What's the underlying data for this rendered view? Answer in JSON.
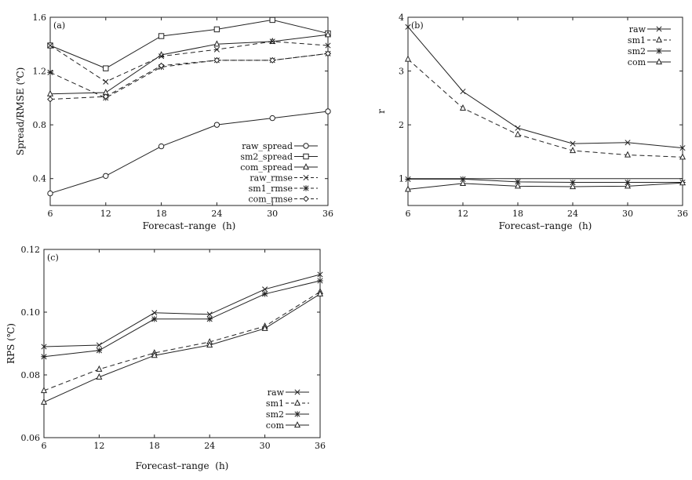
{
  "chart_data": [
    {
      "type": "line",
      "panel_label": "(a)",
      "xlabel": "Forecast–range  (h)",
      "ylabel": "Spread/RMSE (℃)",
      "x": [
        6,
        12,
        18,
        24,
        30,
        36
      ],
      "xticks": [
        "6",
        "12",
        "18",
        "24",
        "30",
        "36"
      ],
      "ylim": [
        0.2,
        1.6
      ],
      "yticks": [
        "0.4",
        "0.8",
        "1.2",
        "1.6"
      ],
      "legend_position": "bottom-right",
      "series": [
        {
          "name": "raw_spread",
          "marker": "circle",
          "dash": "solid",
          "values": [
            0.29,
            0.42,
            0.64,
            0.8,
            0.85,
            0.9
          ]
        },
        {
          "name": "sm2_spread",
          "marker": "square",
          "dash": "solid",
          "values": [
            1.39,
            1.22,
            1.46,
            1.51,
            1.58,
            1.48
          ]
        },
        {
          "name": "com_spread",
          "marker": "triangle",
          "dash": "solid",
          "values": [
            1.03,
            1.04,
            1.32,
            1.4,
            1.42,
            1.47
          ]
        },
        {
          "name": "raw_rmse",
          "marker": "x",
          "dash": "dashed",
          "values": [
            1.39,
            1.12,
            1.31,
            1.36,
            1.42,
            1.39
          ]
        },
        {
          "name": "sm1_rmse",
          "marker": "star",
          "dash": "dashed",
          "values": [
            1.19,
            1.0,
            1.23,
            1.28,
            1.28,
            1.33
          ]
        },
        {
          "name": "com_rmse",
          "marker": "diamond",
          "dash": "dashed",
          "values": [
            0.99,
            1.01,
            1.24,
            1.28,
            1.28,
            1.33
          ]
        }
      ]
    },
    {
      "type": "line",
      "panel_label": "(b)",
      "xlabel": "Forecast–range  (h)",
      "ylabel": "r",
      "x": [
        6,
        12,
        18,
        24,
        30,
        36
      ],
      "xticks": [
        "6",
        "12",
        "18",
        "24",
        "30",
        "36"
      ],
      "ylim": [
        0.5,
        4.0
      ],
      "yticks": [
        "1",
        "2",
        "3",
        "4"
      ],
      "legend_position": "top-right",
      "series": [
        {
          "name": "raw",
          "marker": "x",
          "dash": "solid",
          "values": [
            3.82,
            2.62,
            1.94,
            1.65,
            1.67,
            1.57
          ]
        },
        {
          "name": "sm1",
          "marker": "triangle",
          "dash": "dashed",
          "values": [
            3.22,
            2.31,
            1.82,
            1.52,
            1.44,
            1.4
          ]
        },
        {
          "name": "sm2",
          "marker": "star",
          "dash": "solid",
          "values": [
            0.99,
            0.99,
            0.94,
            0.93,
            0.93,
            0.93
          ]
        },
        {
          "name": "com",
          "marker": "triangle",
          "dash": "solid",
          "values": [
            0.8,
            0.91,
            0.86,
            0.85,
            0.86,
            0.92
          ]
        }
      ],
      "reference_line": 1.0
    },
    {
      "type": "line",
      "panel_label": "(c)",
      "xlabel": "Forecast–range  (h)",
      "ylabel": "RPS (℃)",
      "x": [
        6,
        12,
        18,
        24,
        30,
        36
      ],
      "xticks": [
        "6",
        "12",
        "18",
        "24",
        "30",
        "36"
      ],
      "ylim": [
        0.06,
        0.12
      ],
      "yticks": [
        "0.06",
        "0.08",
        "0.10",
        "0.12"
      ],
      "legend_position": "bottom-right",
      "series": [
        {
          "name": "raw",
          "marker": "x",
          "dash": "solid",
          "values": [
            0.089,
            0.0895,
            0.0998,
            0.0993,
            0.1073,
            0.112
          ]
        },
        {
          "name": "sm1",
          "marker": "triangle",
          "dash": "dashed",
          "values": [
            0.075,
            0.0818,
            0.087,
            0.0905,
            0.0955,
            0.1065
          ]
        },
        {
          "name": "sm2",
          "marker": "star",
          "dash": "solid",
          "values": [
            0.0858,
            0.0878,
            0.0978,
            0.0978,
            0.1058,
            0.11
          ]
        },
        {
          "name": "com",
          "marker": "triangle",
          "dash": "solid",
          "values": [
            0.0713,
            0.0793,
            0.0862,
            0.0895,
            0.0948,
            0.1058
          ]
        }
      ]
    }
  ]
}
